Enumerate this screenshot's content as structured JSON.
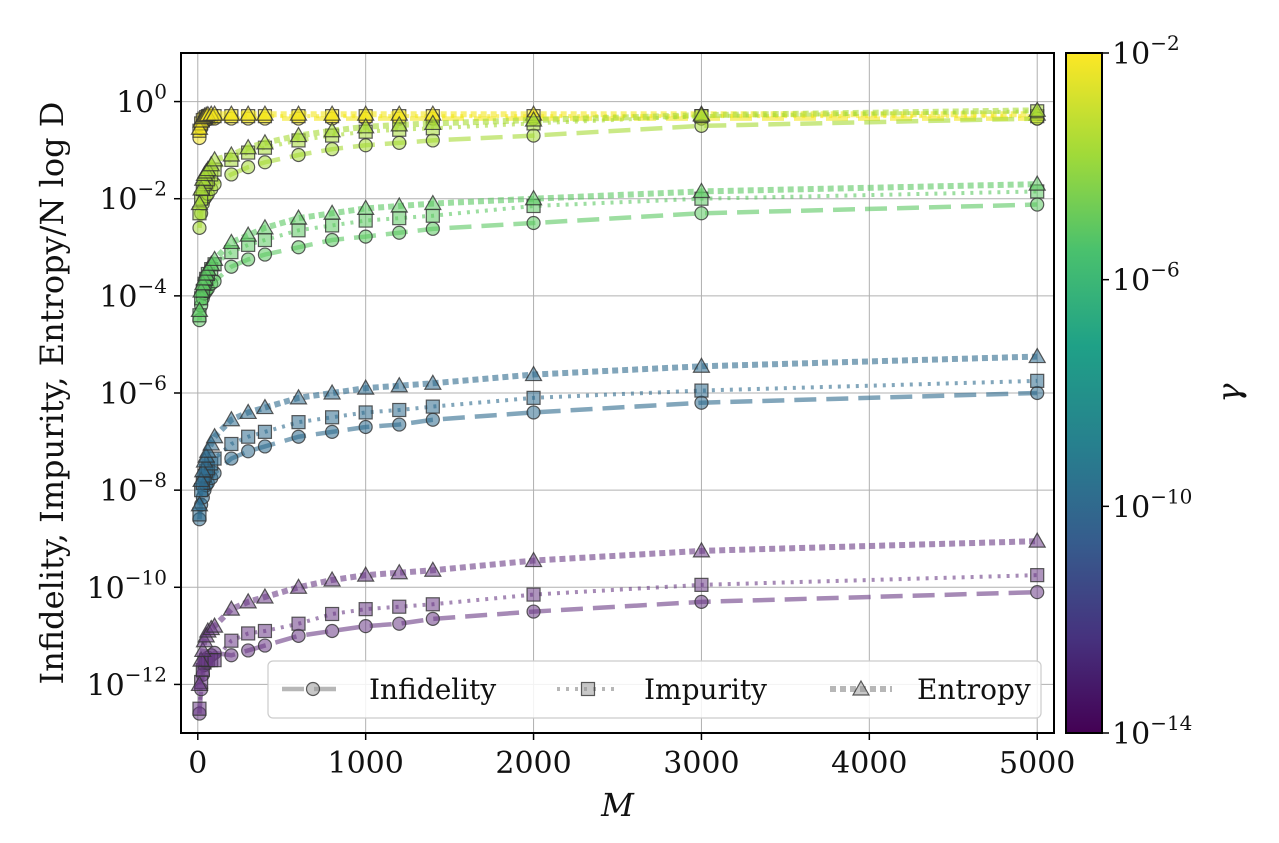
{
  "chart_data": {
    "type": "line",
    "xlabel": "M",
    "ylabel": "Infidelity, Impurity, Entropy/N log D",
    "xlim": [
      -100,
      5100
    ],
    "ylog": true,
    "ylim_exp": [
      -13.0,
      1.0
    ],
    "grid": true,
    "x_ticks": [
      0,
      1000,
      2000,
      3000,
      4000,
      5000
    ],
    "x_tick_labels": [
      "0",
      "1000",
      "2000",
      "3000",
      "4000",
      "5000"
    ],
    "y_tick_exponents": [
      0,
      -2,
      -4,
      -6,
      -8,
      -10,
      -12
    ],
    "colorbar": {
      "label": "γ",
      "colormap": "viridis",
      "log": true,
      "range_exp": [
        -14,
        -2
      ],
      "tick_exponents": [
        -2,
        -6,
        -10,
        -14
      ]
    },
    "legend": {
      "placement": "bottom-right",
      "entries": [
        {
          "label": "Infidelity",
          "marker": "circle",
          "linestyle": "dashed"
        },
        {
          "label": "Impurity",
          "marker": "square",
          "linestyle": "dotted"
        },
        {
          "label": "Entropy",
          "marker": "triangle",
          "linestyle": "densely-dotted"
        }
      ]
    },
    "x": [
      10,
      20,
      30,
      40,
      50,
      60,
      80,
      100,
      200,
      300,
      400,
      600,
      800,
      1000,
      1200,
      1400,
      2000,
      3000,
      5000
    ],
    "groups": [
      {
        "gamma_exp": -2.3,
        "color": "#f4e61e",
        "series": [
          {
            "name": "Infidelity",
            "log10_y": [
              -0.75,
              -0.55,
              -0.45,
              -0.4,
              -0.38,
              -0.36,
              -0.35,
              -0.35,
              -0.35,
              -0.35,
              -0.35,
              -0.35,
              -0.35,
              -0.35,
              -0.35,
              -0.35,
              -0.35,
              -0.35,
              -0.35
            ]
          },
          {
            "name": "Impurity",
            "log10_y": [
              -0.6,
              -0.45,
              -0.38,
              -0.35,
              -0.32,
              -0.3,
              -0.3,
              -0.3,
              -0.3,
              -0.3,
              -0.3,
              -0.3,
              -0.3,
              -0.3,
              -0.3,
              -0.3,
              -0.3,
              -0.3,
              -0.3
            ]
          },
          {
            "name": "Entropy",
            "log10_y": [
              -0.55,
              -0.4,
              -0.33,
              -0.3,
              -0.28,
              -0.27,
              -0.26,
              -0.26,
              -0.26,
              -0.26,
              -0.26,
              -0.26,
              -0.26,
              -0.26,
              -0.26,
              -0.26,
              -0.26,
              -0.26,
              -0.26
            ]
          }
        ]
      },
      {
        "gamma_exp": -4.0,
        "color": "#a6db36",
        "series": [
          {
            "name": "Infidelity",
            "log10_y": [
              -2.6,
              -2.3,
              -2.1,
              -2.0,
              -1.95,
              -1.9,
              -1.8,
              -1.7,
              -1.5,
              -1.35,
              -1.25,
              -1.1,
              -0.98,
              -0.9,
              -0.85,
              -0.8,
              -0.7,
              -0.5,
              -0.35
            ]
          },
          {
            "name": "Impurity",
            "log10_y": [
              -2.3,
              -2.0,
              -1.8,
              -1.7,
              -1.65,
              -1.6,
              -1.5,
              -1.4,
              -1.2,
              -1.05,
              -0.95,
              -0.8,
              -0.7,
              -0.62,
              -0.58,
              -0.55,
              -0.45,
              -0.3,
              -0.2
            ]
          },
          {
            "name": "Entropy",
            "log10_y": [
              -2.1,
              -1.8,
              -1.6,
              -1.5,
              -1.45,
              -1.4,
              -1.3,
              -1.2,
              -1.1,
              -0.95,
              -0.85,
              -0.7,
              -0.6,
              -0.52,
              -0.48,
              -0.45,
              -0.38,
              -0.28,
              -0.18
            ]
          }
        ]
      },
      {
        "gamma_exp": -6.0,
        "color": "#5cc863",
        "series": [
          {
            "name": "Infidelity",
            "log10_y": [
              -4.5,
              -4.2,
              -4.05,
              -3.95,
              -3.9,
              -3.85,
              -3.75,
              -3.7,
              -3.4,
              -3.25,
              -3.15,
              -3.0,
              -2.85,
              -2.78,
              -2.7,
              -2.62,
              -2.5,
              -2.3,
              -2.12
            ]
          },
          {
            "name": "Impurity",
            "log10_y": [
              -4.4,
              -4.05,
              -3.9,
              -3.75,
              -3.65,
              -3.55,
              -3.45,
              -3.35,
              -3.1,
              -2.95,
              -2.85,
              -2.65,
              -2.55,
              -2.45,
              -2.4,
              -2.35,
              -2.15,
              -2.0,
              -1.85
            ]
          },
          {
            "name": "Entropy",
            "log10_y": [
              -4.3,
              -3.9,
              -3.75,
              -3.65,
              -3.55,
              -3.45,
              -3.35,
              -3.25,
              -2.9,
              -2.75,
              -2.6,
              -2.4,
              -2.3,
              -2.2,
              -2.15,
              -2.1,
              -2.0,
              -1.85,
              -1.7
            ]
          }
        ]
      },
      {
        "gamma_exp": -10.0,
        "color": "#2f6b8e",
        "series": [
          {
            "name": "Infidelity",
            "log10_y": [
              -8.6,
              -8.3,
              -8.15,
              -8.0,
              -7.9,
              -7.85,
              -7.75,
              -7.65,
              -7.35,
              -7.2,
              -7.1,
              -6.9,
              -6.8,
              -6.7,
              -6.65,
              -6.55,
              -6.4,
              -6.2,
              -6.0
            ]
          },
          {
            "name": "Impurity",
            "log10_y": [
              -8.5,
              -8.0,
              -7.85,
              -7.7,
              -7.6,
              -7.55,
              -7.45,
              -7.35,
              -7.05,
              -6.9,
              -6.8,
              -6.6,
              -6.5,
              -6.4,
              -6.35,
              -6.28,
              -6.1,
              -5.95,
              -5.75
            ]
          },
          {
            "name": "Entropy",
            "log10_y": [
              -8.3,
              -7.8,
              -7.6,
              -7.4,
              -7.3,
              -7.2,
              -7.05,
              -6.9,
              -6.55,
              -6.4,
              -6.3,
              -6.1,
              -6.0,
              -5.9,
              -5.85,
              -5.8,
              -5.62,
              -5.45,
              -5.25
            ]
          }
        ]
      },
      {
        "gamma_exp": -13.0,
        "color": "#6b3c86",
        "series": [
          {
            "name": "Infidelity",
            "log10_y": [
              -12.6,
              -12.1,
              -11.8,
              -11.6,
              -11.5,
              -11.45,
              -11.4,
              -11.35,
              -11.4,
              -11.3,
              -11.2,
              -11.0,
              -10.9,
              -10.8,
              -10.75,
              -10.65,
              -10.5,
              -10.3,
              -10.1
            ]
          },
          {
            "name": "Impurity",
            "log10_y": [
              -12.5,
              -11.95,
              -11.7,
              -11.55,
              -11.5,
              -11.5,
              -11.5,
              -11.5,
              -11.1,
              -10.95,
              -10.9,
              -10.75,
              -10.55,
              -10.45,
              -10.4,
              -10.35,
              -10.15,
              -9.95,
              -9.75
            ]
          },
          {
            "name": "Entropy",
            "log10_y": [
              -12.0,
              -11.5,
              -11.3,
              -11.1,
              -11.0,
              -10.9,
              -10.85,
              -10.8,
              -10.45,
              -10.3,
              -10.2,
              -10.0,
              -9.85,
              -9.75,
              -9.7,
              -9.65,
              -9.45,
              -9.25,
              -9.05
            ]
          }
        ]
      }
    ]
  }
}
